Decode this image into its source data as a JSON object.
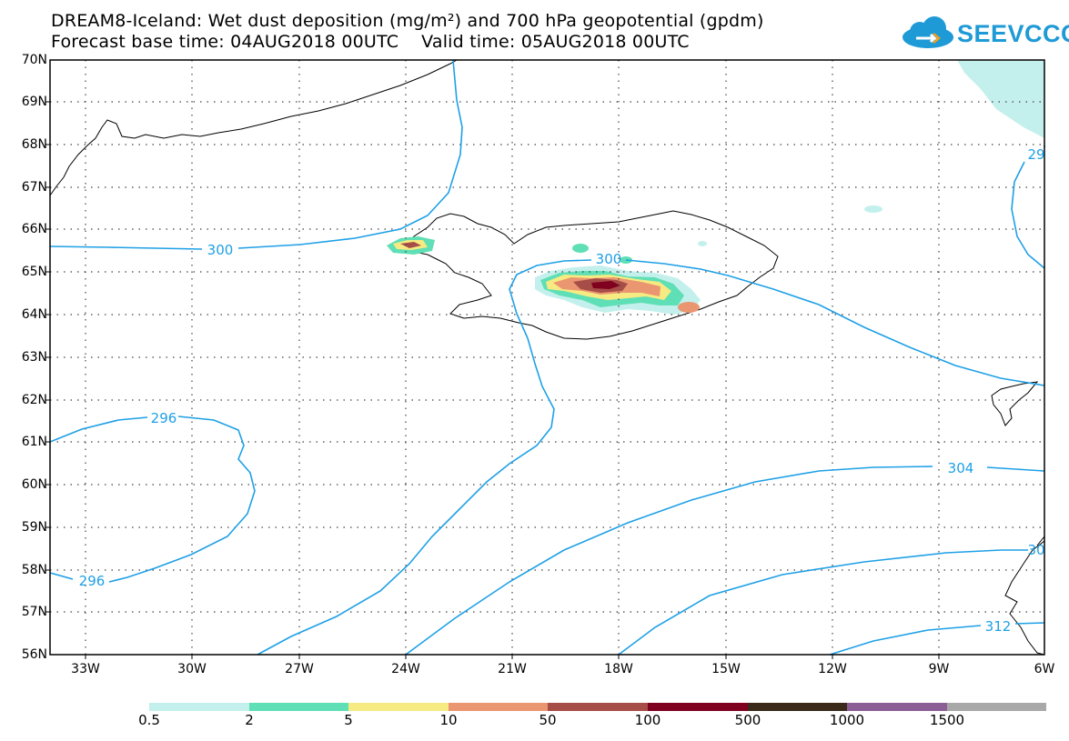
{
  "header": {
    "title_line1": "DREAM8-Iceland: Wet dust deposition (mg/m²) and 700 hPa geopotential (gpdm)",
    "title_line2": "Forecast base time: 04AUG2018 00UTC    Valid time: 05AUG2018 00UTC"
  },
  "logo": {
    "text": "SEEVCCC",
    "icon": "cloud-icon"
  },
  "axes": {
    "lat_labels": [
      "70N",
      "69N",
      "68N",
      "67N",
      "66N",
      "65N",
      "64N",
      "63N",
      "62N",
      "61N",
      "60N",
      "59N",
      "58N",
      "57N",
      "56N"
    ],
    "lon_labels": [
      "33W",
      "30W",
      "27W",
      "24W",
      "21W",
      "18W",
      "15W",
      "12W",
      "9W",
      "6W"
    ]
  },
  "contours": {
    "color": "#1ea0e6",
    "labels": [
      "300",
      "300",
      "296",
      "296",
      "304",
      "30",
      "312",
      "29"
    ]
  },
  "colorbar": {
    "colors": [
      "#c3f0ec",
      "#5fdfb5",
      "#f6ea82",
      "#ea9670",
      "#a64d47",
      "#800020",
      "#3a2a1a",
      "#8c5e96",
      "#a8a8a8"
    ],
    "labels": [
      "0.5",
      "2",
      "5",
      "10",
      "50",
      "100",
      "500",
      "1000",
      "1500"
    ]
  }
}
